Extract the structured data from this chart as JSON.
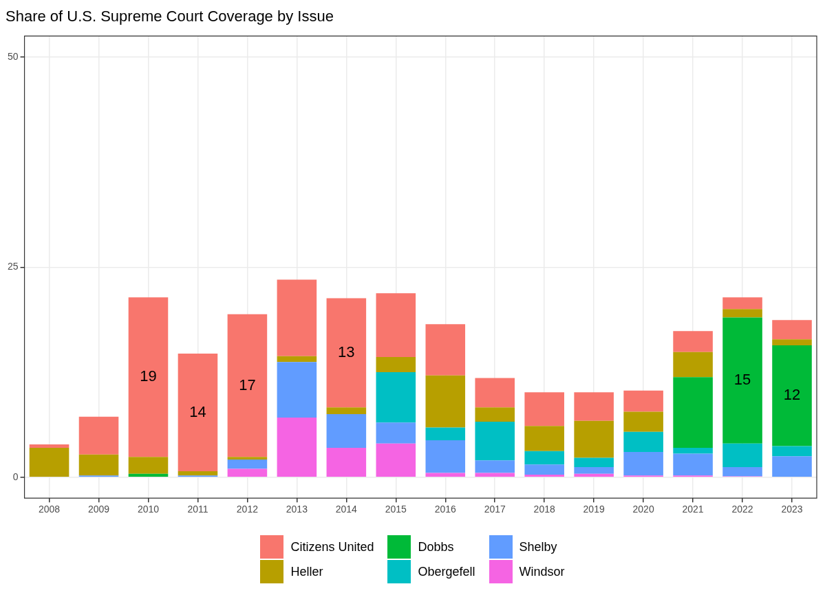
{
  "chart_data": {
    "type": "bar",
    "title": "Share of U.S. Supreme Court Coverage by Issue",
    "categories": [
      "2008",
      "2009",
      "2010",
      "2011",
      "2012",
      "2013",
      "2014",
      "2015",
      "2016",
      "2017",
      "2018",
      "2019",
      "2020",
      "2021",
      "2022",
      "2023"
    ],
    "stacked": true,
    "ylim": [
      -2.5,
      52.5
    ],
    "yticks": [
      0,
      25,
      50
    ],
    "grid": true,
    "legend": "bottom",
    "series": [
      {
        "name": "Windsor",
        "color": "#f564e3",
        "values": [
          0,
          0,
          0,
          0,
          1.0,
          7.1,
          3.5,
          4.0,
          0.5,
          0.5,
          0.3,
          0.4,
          0.2,
          0.2,
          0.1,
          0
        ]
      },
      {
        "name": "Shelby",
        "color": "#619cff",
        "values": [
          0,
          0.2,
          0,
          0.2,
          1.1,
          6.6,
          4.0,
          2.5,
          3.9,
          1.5,
          1.2,
          0.8,
          2.8,
          2.6,
          1.1,
          2.5
        ]
      },
      {
        "name": "Obergefell",
        "color": "#00bfc4",
        "values": [
          0,
          0,
          0,
          0,
          0,
          0,
          0,
          6.0,
          1.5,
          4.6,
          1.6,
          1.1,
          2.4,
          0.7,
          2.8,
          1.2
        ]
      },
      {
        "name": "Dobbs",
        "color": "#00ba38",
        "values": [
          0,
          0,
          0.4,
          0,
          0,
          0,
          0,
          0,
          0,
          0,
          0,
          0,
          0,
          8.4,
          15,
          12
        ],
        "value_labels": [
          null,
          null,
          null,
          null,
          null,
          null,
          null,
          null,
          null,
          null,
          null,
          null,
          null,
          null,
          "15",
          "12"
        ]
      },
      {
        "name": "Heller",
        "color": "#b79f00",
        "values": [
          3.5,
          2.5,
          2.0,
          0.5,
          0.3,
          0.7,
          0.8,
          1.8,
          6.2,
          1.7,
          3.0,
          4.4,
          2.4,
          3.0,
          1.0,
          0.7
        ]
      },
      {
        "name": "Citizens United",
        "color": "#f8766d",
        "values": [
          0.4,
          4.5,
          19,
          14,
          17,
          9.1,
          13,
          7.6,
          6.1,
          3.5,
          4.0,
          3.4,
          2.5,
          2.5,
          1.4,
          2.3
        ],
        "value_labels": [
          null,
          null,
          "19",
          "14",
          "17",
          null,
          "13",
          null,
          null,
          null,
          null,
          null,
          null,
          null,
          null,
          null
        ]
      }
    ]
  }
}
